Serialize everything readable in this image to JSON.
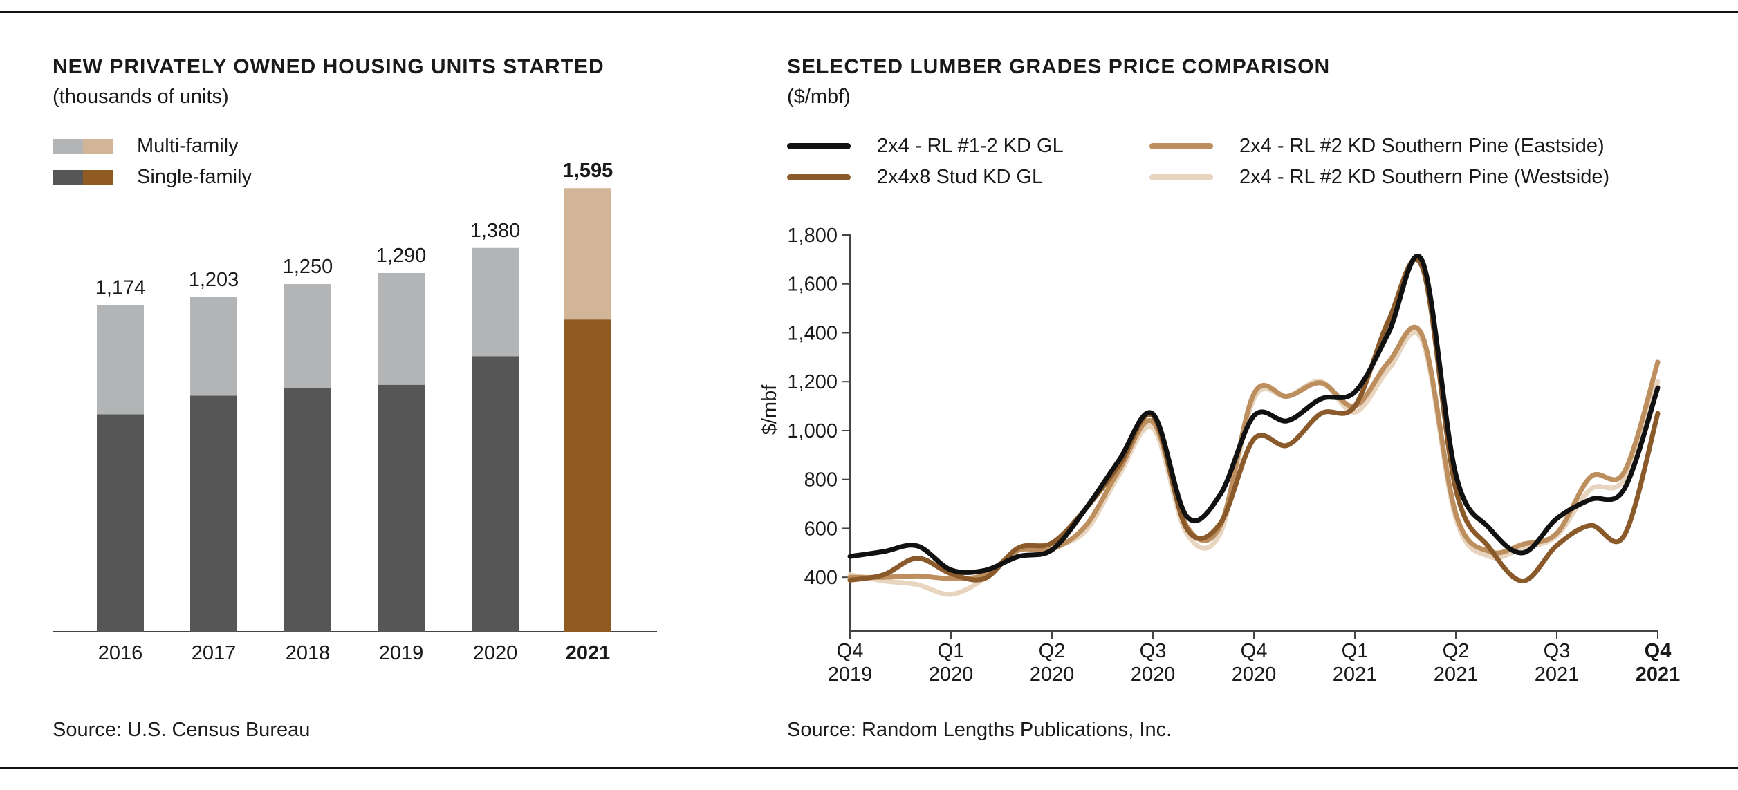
{
  "colors": {
    "multi_gray": "#b3b4b6",
    "single_gray": "#555655",
    "multi_2021": "#d2b596",
    "single_2021": "#8f5b22",
    "axis": "#444444",
    "series_black": "#111111",
    "series_stud": "#8a5a2b",
    "series_east": "#bd8f5f",
    "series_west": "#e8d5bf"
  },
  "left_panel": {
    "title": "NEW PRIVATELY OWNED HOUSING UNITS STARTED",
    "subtitle": "(thousands of units)",
    "legend": [
      {
        "label": "Multi-family",
        "icon": "multi-family-swatch"
      },
      {
        "label": "Single-family",
        "icon": "single-family-swatch"
      }
    ],
    "source": "Source: U.S. Census Bureau"
  },
  "right_panel": {
    "title": "SELECTED LUMBER GRADES PRICE COMPARISON",
    "subtitle": "($/mbf)",
    "source": "Source: Random Lengths Publications, Inc."
  },
  "chart_data": [
    {
      "type": "bar",
      "stacked": true,
      "title": "NEW PRIVATELY OWNED HOUSING UNITS STARTED",
      "subtitle": "(thousands of units)",
      "categories": [
        "2016",
        "2017",
        "2018",
        "2019",
        "2020",
        "2021"
      ],
      "highlight_category": "2021",
      "totals": [
        1174,
        1203,
        1250,
        1290,
        1380,
        1595
      ],
      "total_labels": [
        "1,174",
        "1,203",
        "1,250",
        "1,290",
        "1,380",
        "1,595"
      ],
      "series": [
        {
          "name": "Single-family",
          "values": [
            782,
            849,
            876,
            888,
            991,
            1123
          ]
        },
        {
          "name": "Multi-family",
          "values": [
            392,
            354,
            374,
            402,
            389,
            472
          ]
        }
      ],
      "ylim": [
        0,
        1700
      ],
      "legend_position": "top-left",
      "grid": false
    },
    {
      "type": "line",
      "title": "SELECTED LUMBER GRADES PRICE COMPARISON",
      "subtitle": "($/mbf)",
      "ylabel": "$/mbf",
      "ylim": [
        180,
        1800
      ],
      "yticks": [
        400,
        600,
        800,
        1000,
        1200,
        1400,
        1600,
        1800
      ],
      "ytick_labels": [
        "400",
        "600",
        "800",
        "1,000",
        "1,200",
        "1,400",
        "1,600",
        "1,800"
      ],
      "x_range": [
        "2019-10",
        "2021-10"
      ],
      "x": [
        "2019-10",
        "2019-11",
        "2019-12",
        "2020-01",
        "2020-02",
        "2020-03",
        "2020-04",
        "2020-05",
        "2020-06",
        "2020-07",
        "2020-08",
        "2020-09",
        "2020-10",
        "2020-11",
        "2020-12",
        "2021-01",
        "2021-02",
        "2021-03",
        "2021-04",
        "2021-05",
        "2021-06",
        "2021-07",
        "2021-08",
        "2021-09",
        "2021-10"
      ],
      "quarter_ticks": [
        {
          "q": "Q4",
          "year": "2019",
          "x": "2019-10",
          "bold": false
        },
        {
          "q": "Q1",
          "year": "2020",
          "x": "2020-01",
          "bold": false
        },
        {
          "q": "Q2",
          "year": "2020",
          "x": "2020-04",
          "bold": false
        },
        {
          "q": "Q3",
          "year": "2020",
          "x": "2020-07",
          "bold": false
        },
        {
          "q": "Q4",
          "year": "2020",
          "x": "2020-10",
          "bold": false
        },
        {
          "q": "Q1",
          "year": "2021",
          "x": "2021-01",
          "bold": false
        },
        {
          "q": "Q2",
          "year": "2021",
          "x": "2021-04",
          "bold": false
        },
        {
          "q": "Q3",
          "year": "2021",
          "x": "2021-07",
          "bold": false
        },
        {
          "q": "Q4",
          "year": "2021",
          "x": "2021-10",
          "bold": true
        }
      ],
      "legend_position": "top",
      "grid": false,
      "series": [
        {
          "name": "2x4 - RL #1-2 KD GL",
          "color": "#111111",
          "values": [
            485,
            505,
            528,
            430,
            428,
            485,
            512,
            680,
            880,
            1068,
            650,
            738,
            1060,
            1040,
            1130,
            1158,
            1400,
            1695,
            820,
            600,
            500,
            640,
            718,
            760,
            1175
          ]
        },
        {
          "name": "2x4x8 Stud KD GL",
          "color": "#8a5a2b",
          "values": [
            388,
            410,
            478,
            415,
            395,
            520,
            540,
            680,
            860,
            1060,
            600,
            620,
            965,
            940,
            1070,
            1100,
            1450,
            1670,
            760,
            520,
            385,
            530,
            612,
            570,
            1070
          ]
        },
        {
          "name": "2x4 - RL #2 KD Southern Pine (Eastside)",
          "color": "#bd8f5f",
          "values": [
            400,
            400,
            405,
            395,
            410,
            510,
            515,
            610,
            840,
            1035,
            610,
            610,
            1150,
            1140,
            1195,
            1100,
            1280,
            1390,
            660,
            505,
            535,
            580,
            810,
            830,
            1280
          ]
        },
        {
          "name": "2x4 - RL #2 KD Southern Pine (Westside)",
          "color": "#e8d5bf",
          "values": [
            410,
            385,
            370,
            330,
            395,
            515,
            525,
            590,
            820,
            1010,
            580,
            580,
            1130,
            1140,
            1200,
            1075,
            1250,
            1370,
            640,
            485,
            520,
            570,
            760,
            800,
            1200
          ]
        }
      ]
    }
  ]
}
